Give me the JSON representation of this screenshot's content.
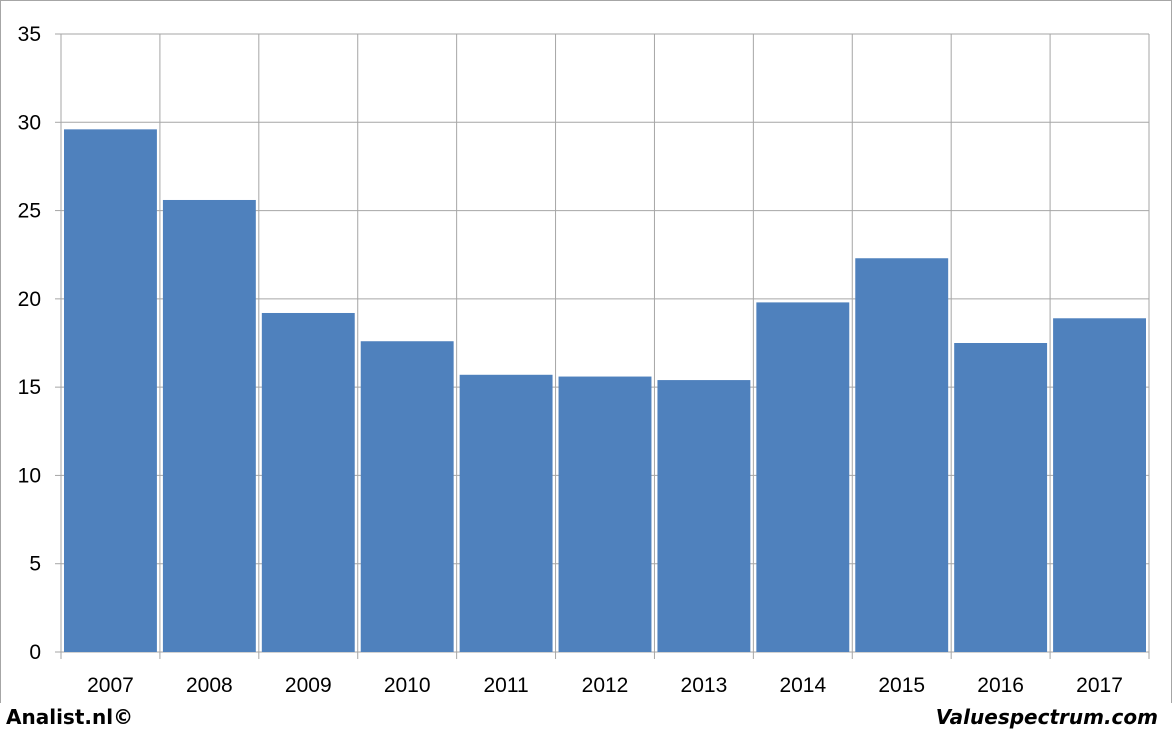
{
  "chart_data": {
    "type": "bar",
    "categories": [
      "2007",
      "2008",
      "2009",
      "2010",
      "2011",
      "2012",
      "2013",
      "2014",
      "2015",
      "2016",
      "2017"
    ],
    "values": [
      29.6,
      25.6,
      19.2,
      17.6,
      15.7,
      15.6,
      15.4,
      19.8,
      22.3,
      17.5,
      18.9
    ],
    "ylim": [
      0,
      35
    ],
    "yticks": [
      0,
      5,
      10,
      15,
      20,
      25,
      30,
      35
    ],
    "grid": true,
    "bar_color": "#4f81bd",
    "grid_color": "#a6a6a6"
  },
  "footer": {
    "left": "Analist.nl©",
    "right": "Valuespectrum.com"
  }
}
